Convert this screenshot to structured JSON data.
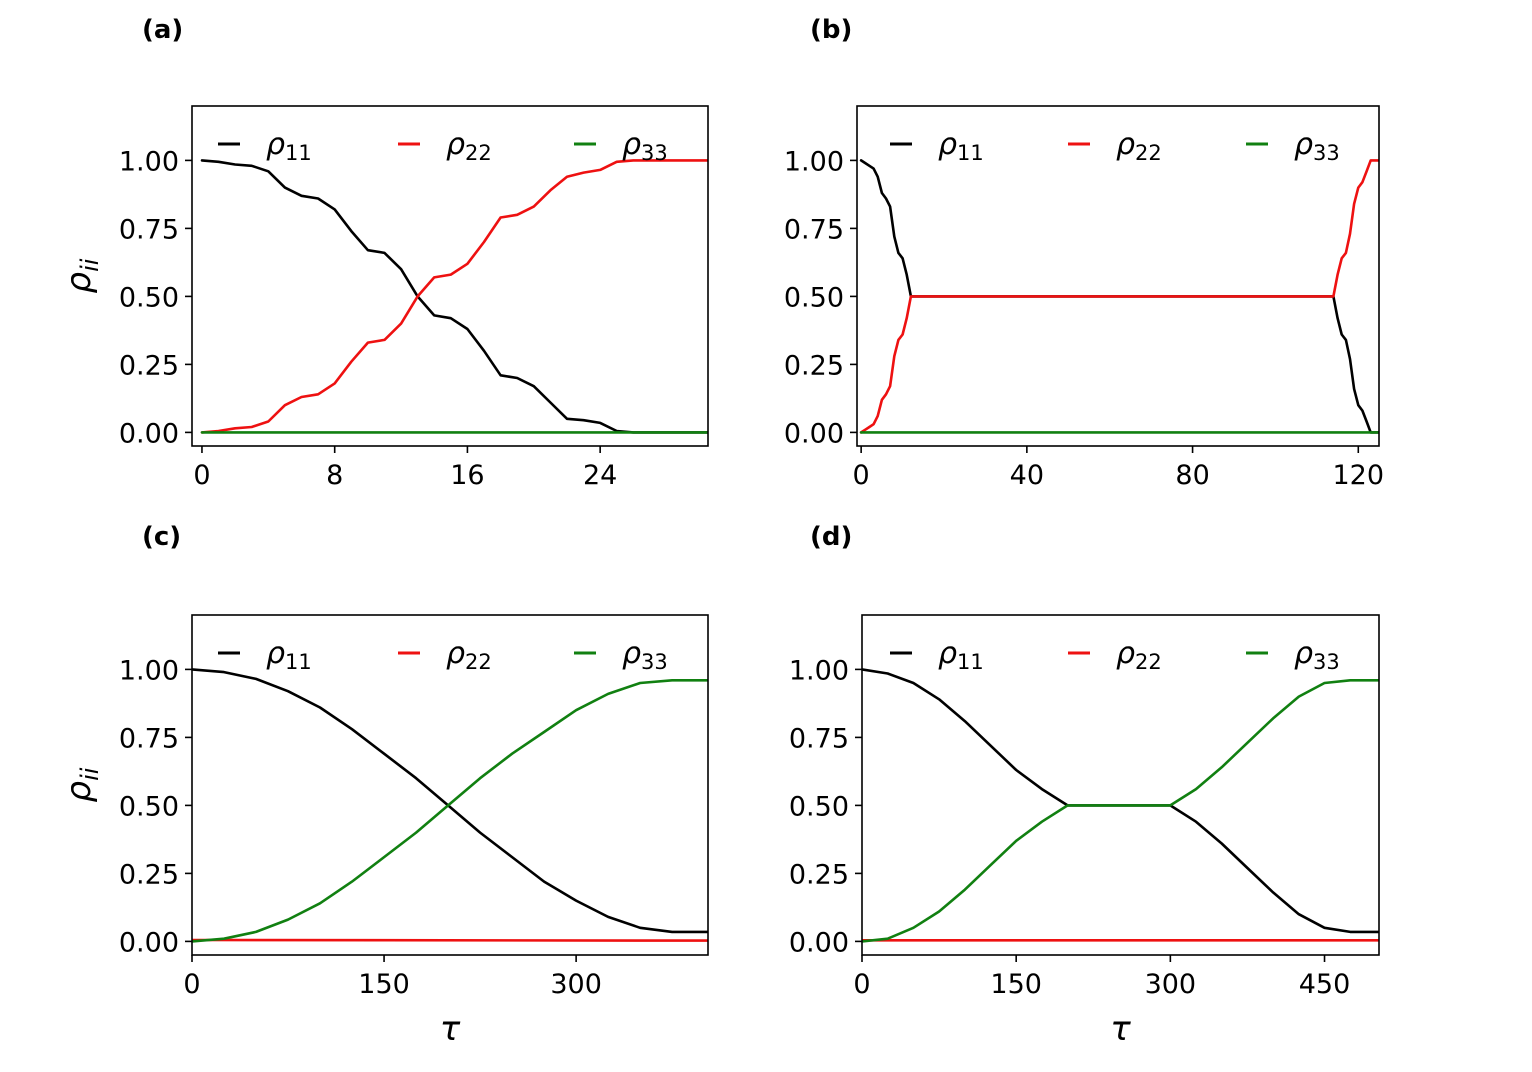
{
  "colors": {
    "rho11": "#000000",
    "rho22": "#ee1111",
    "rho33": "#118011"
  },
  "chart_data": [
    {
      "id": "a",
      "type": "line",
      "panel_label": "(a)",
      "xlim": [
        -0.6,
        30.5
      ],
      "ylim": [
        -0.05,
        1.2
      ],
      "xticks": [
        0,
        8,
        16,
        24
      ],
      "xtick_labels": [
        "0",
        "8",
        "16",
        "24"
      ],
      "yticks": [
        0,
        0.25,
        0.5,
        0.75,
        1.0
      ],
      "ytick_labels": [
        "0.00",
        "0.25",
        "0.50",
        "0.75",
        "1.00"
      ],
      "ylabel": "ρ_ii",
      "xlabel": "",
      "legend": {
        "location": "top",
        "entries": [
          {
            "symbol": "ρ",
            "sub": "11",
            "color_key": "rho11"
          },
          {
            "symbol": "ρ",
            "sub": "22",
            "color_key": "rho22"
          },
          {
            "symbol": "ρ",
            "sub": "33",
            "color_key": "rho33"
          }
        ]
      },
      "series": [
        {
          "name": "ρ11",
          "color_key": "rho11",
          "x": [
            0,
            1,
            2,
            3,
            4,
            5,
            6,
            7,
            8,
            9,
            10,
            11,
            12,
            13,
            14,
            15,
            16,
            17,
            18,
            19,
            20,
            21,
            22,
            23,
            24,
            25,
            26,
            28,
            30.5
          ],
          "y": [
            1.0,
            0.995,
            0.985,
            0.98,
            0.96,
            0.9,
            0.87,
            0.86,
            0.82,
            0.74,
            0.67,
            0.66,
            0.6,
            0.5,
            0.43,
            0.42,
            0.38,
            0.3,
            0.21,
            0.2,
            0.17,
            0.11,
            0.05,
            0.045,
            0.035,
            0.005,
            0.0,
            0.0,
            0.0
          ]
        },
        {
          "name": "ρ22",
          "color_key": "rho22",
          "x": [
            0,
            1,
            2,
            3,
            4,
            5,
            6,
            7,
            8,
            9,
            10,
            11,
            12,
            13,
            14,
            15,
            16,
            17,
            18,
            19,
            20,
            21,
            22,
            23,
            24,
            25,
            26,
            28,
            30.5
          ],
          "y": [
            0.0,
            0.005,
            0.015,
            0.02,
            0.04,
            0.1,
            0.13,
            0.14,
            0.18,
            0.26,
            0.33,
            0.34,
            0.4,
            0.5,
            0.57,
            0.58,
            0.62,
            0.7,
            0.79,
            0.8,
            0.83,
            0.89,
            0.94,
            0.955,
            0.965,
            0.995,
            1.0,
            1.0,
            1.0
          ]
        },
        {
          "name": "ρ33",
          "color_key": "rho33",
          "x": [
            0,
            30.5
          ],
          "y": [
            0.0,
            0.0
          ]
        }
      ]
    },
    {
      "id": "b",
      "type": "line",
      "panel_label": "(b)",
      "xlim": [
        -1,
        125
      ],
      "ylim": [
        -0.05,
        1.2
      ],
      "xticks": [
        0,
        40,
        80,
        120
      ],
      "xtick_labels": [
        "0",
        "40",
        "80",
        "120"
      ],
      "yticks": [
        0,
        0.25,
        0.5,
        0.75,
        1.0
      ],
      "ytick_labels": [
        "0.00",
        "0.25",
        "0.50",
        "0.75",
        "1.00"
      ],
      "ylabel": "",
      "xlabel": "",
      "legend": {
        "location": "top",
        "entries": [
          {
            "symbol": "ρ",
            "sub": "11",
            "color_key": "rho11"
          },
          {
            "symbol": "ρ",
            "sub": "22",
            "color_key": "rho22"
          },
          {
            "symbol": "ρ",
            "sub": "33",
            "color_key": "rho33"
          }
        ]
      },
      "series": [
        {
          "name": "ρ11",
          "color_key": "rho11",
          "x": [
            0,
            1,
            2,
            3,
            4,
            5,
            6,
            7,
            8,
            9,
            10,
            11,
            12,
            13,
            113,
            114,
            115,
            116,
            117,
            118,
            119,
            120,
            121,
            122,
            123,
            124,
            125
          ],
          "y": [
            1.0,
            0.99,
            0.98,
            0.97,
            0.94,
            0.88,
            0.86,
            0.83,
            0.72,
            0.66,
            0.64,
            0.58,
            0.5,
            0.5,
            0.5,
            0.5,
            0.42,
            0.36,
            0.34,
            0.27,
            0.16,
            0.1,
            0.08,
            0.04,
            0.0,
            0.0,
            0.0
          ]
        },
        {
          "name": "ρ22",
          "color_key": "rho22",
          "x": [
            0,
            1,
            2,
            3,
            4,
            5,
            6,
            7,
            8,
            9,
            10,
            11,
            12,
            13,
            113,
            114,
            115,
            116,
            117,
            118,
            119,
            120,
            121,
            122,
            123,
            124,
            125
          ],
          "y": [
            0.0,
            0.01,
            0.02,
            0.03,
            0.06,
            0.12,
            0.14,
            0.17,
            0.28,
            0.34,
            0.36,
            0.42,
            0.5,
            0.5,
            0.5,
            0.5,
            0.58,
            0.64,
            0.66,
            0.73,
            0.84,
            0.9,
            0.92,
            0.96,
            1.0,
            1.0,
            1.0
          ]
        },
        {
          "name": "ρ33",
          "color_key": "rho33",
          "x": [
            0,
            125
          ],
          "y": [
            0.0,
            0.0
          ]
        }
      ]
    },
    {
      "id": "c",
      "type": "line",
      "panel_label": "(c)",
      "xlim": [
        0,
        403
      ],
      "ylim": [
        -0.05,
        1.2
      ],
      "xticks": [
        0,
        150,
        300
      ],
      "xtick_labels": [
        "0",
        "150",
        "300"
      ],
      "yticks": [
        0,
        0.25,
        0.5,
        0.75,
        1.0
      ],
      "ytick_labels": [
        "0.00",
        "0.25",
        "0.50",
        "0.75",
        "1.00"
      ],
      "ylabel": "ρ_ii",
      "xlabel": "τ",
      "legend": {
        "location": "top",
        "entries": [
          {
            "symbol": "ρ",
            "sub": "11",
            "color_key": "rho11"
          },
          {
            "symbol": "ρ",
            "sub": "22",
            "color_key": "rho22"
          },
          {
            "symbol": "ρ",
            "sub": "33",
            "color_key": "rho33"
          }
        ]
      },
      "series": [
        {
          "name": "ρ11",
          "color_key": "rho11",
          "x": [
            0,
            25,
            50,
            75,
            100,
            125,
            150,
            175,
            200,
            225,
            250,
            275,
            300,
            325,
            350,
            375,
            403
          ],
          "y": [
            1.0,
            0.99,
            0.965,
            0.92,
            0.86,
            0.78,
            0.69,
            0.6,
            0.5,
            0.4,
            0.31,
            0.22,
            0.15,
            0.09,
            0.05,
            0.035,
            0.035
          ]
        },
        {
          "name": "ρ22",
          "color_key": "rho22",
          "x": [
            0,
            403
          ],
          "y": [
            0.005,
            0.003
          ]
        },
        {
          "name": "ρ33",
          "color_key": "rho33",
          "x": [
            0,
            25,
            50,
            75,
            100,
            125,
            150,
            175,
            200,
            225,
            250,
            275,
            300,
            325,
            350,
            375,
            403
          ],
          "y": [
            0.0,
            0.01,
            0.035,
            0.08,
            0.14,
            0.22,
            0.31,
            0.4,
            0.5,
            0.6,
            0.69,
            0.77,
            0.85,
            0.91,
            0.95,
            0.96,
            0.96
          ]
        }
      ]
    },
    {
      "id": "d",
      "type": "line",
      "panel_label": "(d)",
      "xlim": [
        0,
        503
      ],
      "ylim": [
        -0.05,
        1.2
      ],
      "xticks": [
        0,
        150,
        300,
        450
      ],
      "xtick_labels": [
        "0",
        "150",
        "300",
        "450"
      ],
      "yticks": [
        0,
        0.25,
        0.5,
        0.75,
        1.0
      ],
      "ytick_labels": [
        "0.00",
        "0.25",
        "0.50",
        "0.75",
        "1.00"
      ],
      "ylabel": "",
      "xlabel": "τ",
      "legend": {
        "location": "top",
        "entries": [
          {
            "symbol": "ρ",
            "sub": "11",
            "color_key": "rho11"
          },
          {
            "symbol": "ρ",
            "sub": "22",
            "color_key": "rho22"
          },
          {
            "symbol": "ρ",
            "sub": "33",
            "color_key": "rho33"
          }
        ]
      },
      "series": [
        {
          "name": "ρ11",
          "color_key": "rho11",
          "x": [
            0,
            25,
            50,
            75,
            100,
            125,
            150,
            175,
            200,
            300,
            325,
            350,
            375,
            400,
            425,
            450,
            475,
            503
          ],
          "y": [
            1.0,
            0.985,
            0.95,
            0.89,
            0.81,
            0.72,
            0.63,
            0.56,
            0.5,
            0.5,
            0.44,
            0.36,
            0.27,
            0.18,
            0.1,
            0.05,
            0.035,
            0.035
          ]
        },
        {
          "name": "ρ22",
          "color_key": "rho22",
          "x": [
            0,
            503
          ],
          "y": [
            0.004,
            0.004
          ]
        },
        {
          "name": "ρ33",
          "color_key": "rho33",
          "x": [
            0,
            25,
            50,
            75,
            100,
            125,
            150,
            175,
            200,
            300,
            325,
            350,
            375,
            400,
            425,
            450,
            475,
            503
          ],
          "y": [
            0.0,
            0.01,
            0.05,
            0.11,
            0.19,
            0.28,
            0.37,
            0.44,
            0.5,
            0.5,
            0.56,
            0.64,
            0.73,
            0.82,
            0.9,
            0.95,
            0.96,
            0.96
          ]
        }
      ]
    }
  ]
}
